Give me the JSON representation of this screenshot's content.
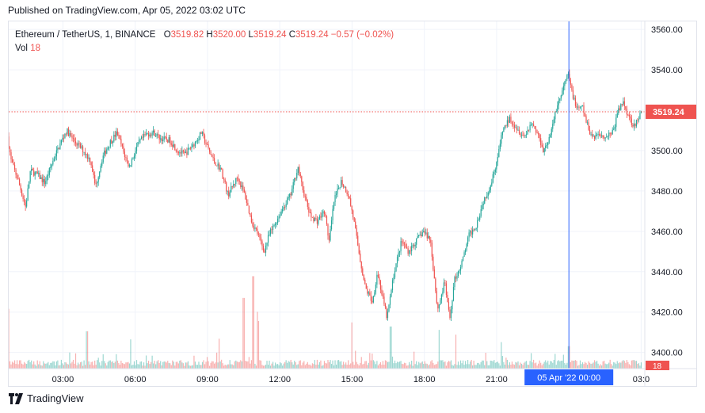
{
  "header": {
    "published": "Published on TradingView.com, Apr 05, 2022 03:02 UTC"
  },
  "legend": {
    "symbol": "Ethereum / TetherUS, 1, BINANCE",
    "open_key": "O",
    "open": "3519.82",
    "high_key": "H",
    "high": "3520.00",
    "low_key": "L",
    "low": "3519.24",
    "close_key": "C",
    "close": "3519.24",
    "change": "−0.57 (−0.02%)",
    "vol_key": "Vol",
    "vol": "18"
  },
  "footer": {
    "brand": "TradingView"
  },
  "colors": {
    "up": "#26a69a",
    "down": "#ef5350",
    "crosshair": "#2962ff",
    "axis_text": "#131722",
    "grid": "#f0f3fa"
  },
  "chart_data": {
    "type": "candlestick",
    "symbol": "Ethereum / TetherUS",
    "interval": "1",
    "exchange": "BINANCE",
    "ylim": [
      3392,
      3564
    ],
    "y_ticks": [
      "3560.00",
      "3540.00",
      "3520.00",
      "3500.00",
      "3480.00",
      "3460.00",
      "3440.00",
      "3420.00",
      "3400.00"
    ],
    "y_tick_values": [
      3560,
      3540,
      3520,
      3500,
      3480,
      3460,
      3440,
      3420,
      3400
    ],
    "x_ticks": [
      "03:00",
      "06:00",
      "09:00",
      "12:00",
      "15:00",
      "18:00",
      "21:00",
      "03:0"
    ],
    "x_tick_hours": [
      3,
      6,
      9,
      12,
      15,
      18,
      21,
      27
    ],
    "x_range_hours": [
      0.75,
      27.15
    ],
    "last_price": "3519.24",
    "last_price_value": 3519.24,
    "last_volume": "18",
    "crosshair_label": "05 Apr '22   00:00",
    "crosshair_hour": 24,
    "price_path": [
      [
        0.75,
        3507
      ],
      [
        0.9,
        3495
      ],
      [
        1.2,
        3485
      ],
      [
        1.5,
        3472
      ],
      [
        1.7,
        3490
      ],
      [
        2.0,
        3488
      ],
      [
        2.3,
        3484
      ],
      [
        2.7,
        3497
      ],
      [
        3.0,
        3505
      ],
      [
        3.2,
        3510
      ],
      [
        3.5,
        3505
      ],
      [
        3.9,
        3500
      ],
      [
        4.2,
        3495
      ],
      [
        4.4,
        3482
      ],
      [
        4.7,
        3497
      ],
      [
        5.0,
        3504
      ],
      [
        5.3,
        3509
      ],
      [
        5.6,
        3498
      ],
      [
        5.8,
        3492
      ],
      [
        6.2,
        3504
      ],
      [
        6.5,
        3508
      ],
      [
        6.8,
        3509
      ],
      [
        7.1,
        3506
      ],
      [
        7.5,
        3505
      ],
      [
        7.8,
        3500
      ],
      [
        8.1,
        3498
      ],
      [
        8.6,
        3505
      ],
      [
        8.8,
        3509
      ],
      [
        9.0,
        3503
      ],
      [
        9.3,
        3495
      ],
      [
        9.6,
        3491
      ],
      [
        9.9,
        3478
      ],
      [
        10.3,
        3487
      ],
      [
        10.6,
        3478
      ],
      [
        10.9,
        3464
      ],
      [
        11.1,
        3460
      ],
      [
        11.4,
        3450
      ],
      [
        11.6,
        3458
      ],
      [
        11.9,
        3465
      ],
      [
        12.2,
        3472
      ],
      [
        12.5,
        3478
      ],
      [
        12.8,
        3492
      ],
      [
        13.0,
        3481
      ],
      [
        13.3,
        3468
      ],
      [
        13.6,
        3465
      ],
      [
        13.9,
        3470
      ],
      [
        14.1,
        3455
      ],
      [
        14.3,
        3475
      ],
      [
        14.6,
        3485
      ],
      [
        14.9,
        3478
      ],
      [
        15.1,
        3467
      ],
      [
        15.4,
        3445
      ],
      [
        15.6,
        3432
      ],
      [
        15.9,
        3425
      ],
      [
        16.1,
        3440
      ],
      [
        16.3,
        3428
      ],
      [
        16.5,
        3417
      ],
      [
        16.8,
        3440
      ],
      [
        17.1,
        3455
      ],
      [
        17.4,
        3450
      ],
      [
        17.7,
        3455
      ],
      [
        18.0,
        3460
      ],
      [
        18.3,
        3456
      ],
      [
        18.6,
        3421
      ],
      [
        18.9,
        3435
      ],
      [
        19.1,
        3416
      ],
      [
        19.3,
        3436
      ],
      [
        19.6,
        3444
      ],
      [
        19.9,
        3458
      ],
      [
        20.2,
        3463
      ],
      [
        20.5,
        3475
      ],
      [
        20.8,
        3483
      ],
      [
        21.1,
        3497
      ],
      [
        21.3,
        3510
      ],
      [
        21.6,
        3516
      ],
      [
        21.9,
        3511
      ],
      [
        22.2,
        3507
      ],
      [
        22.5,
        3514
      ],
      [
        22.8,
        3507
      ],
      [
        23.0,
        3500
      ],
      [
        23.3,
        3508
      ],
      [
        23.5,
        3520
      ],
      [
        23.8,
        3530
      ],
      [
        24.0,
        3538
      ],
      [
        24.2,
        3528
      ],
      [
        24.4,
        3520
      ],
      [
        24.6,
        3522
      ],
      [
        24.8,
        3513
      ],
      [
        25.0,
        3507
      ],
      [
        25.3,
        3508
      ],
      [
        25.6,
        3507
      ],
      [
        25.9,
        3510
      ],
      [
        26.1,
        3520
      ],
      [
        26.3,
        3524
      ],
      [
        26.5,
        3518
      ],
      [
        26.7,
        3513
      ],
      [
        26.9,
        3514
      ],
      [
        27.05,
        3519
      ]
    ],
    "volume_spikes": [
      [
        0.75,
        88
      ],
      [
        4.0,
        55
      ],
      [
        5.8,
        43
      ],
      [
        9.5,
        44
      ],
      [
        10.5,
        104
      ],
      [
        10.9,
        136
      ],
      [
        11.1,
        70
      ],
      [
        15.0,
        68
      ],
      [
        16.6,
        62
      ],
      [
        18.6,
        57
      ],
      [
        19.3,
        50
      ],
      [
        21.2,
        39
      ],
      [
        24.0,
        33
      ]
    ],
    "volume_scale_max": 140
  }
}
